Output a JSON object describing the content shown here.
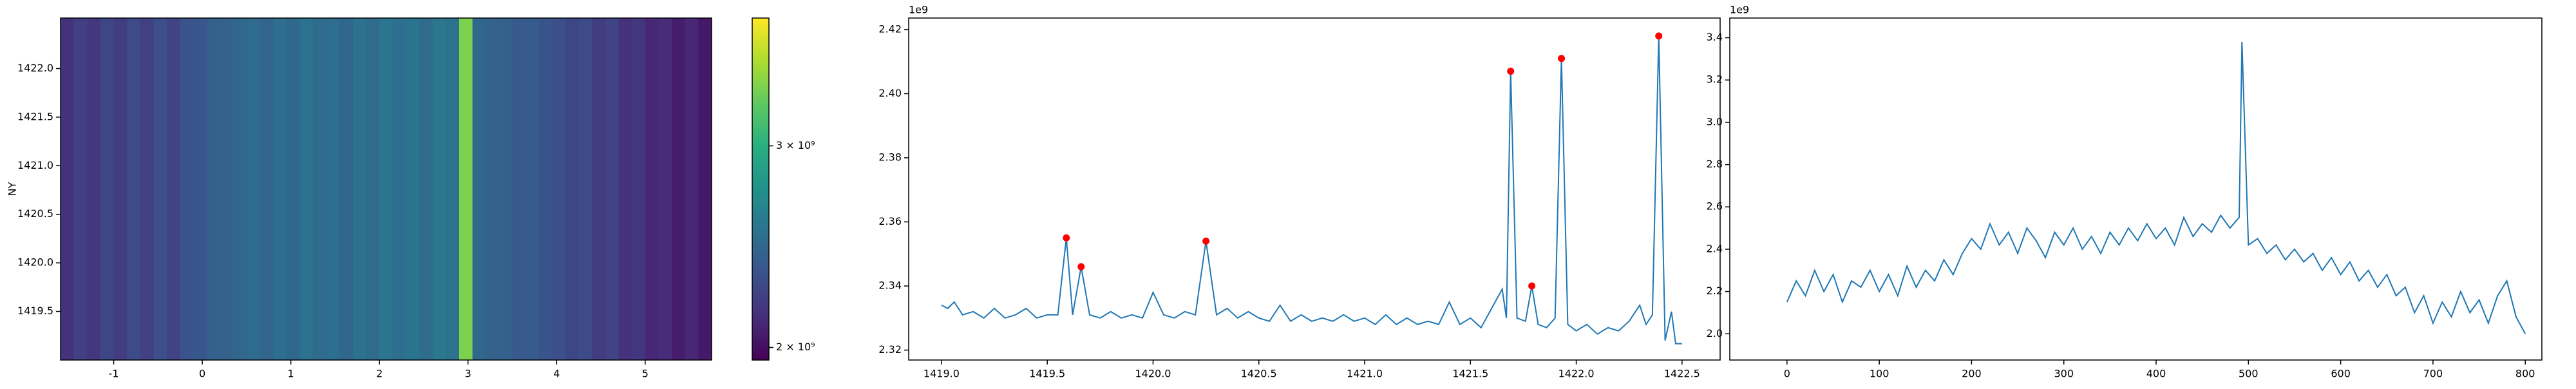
{
  "chart_data": [
    {
      "type": "heatmap",
      "ylabel": "NY",
      "colormap": "viridis",
      "cscale": "log",
      "xbins": [
        -1.6,
        -1.45,
        -1.3,
        -1.15,
        -1.0,
        -0.85,
        -0.7,
        -0.55,
        -0.4,
        -0.25,
        -0.1,
        0.05,
        0.2,
        0.35,
        0.5,
        0.65,
        0.8,
        0.95,
        1.1,
        1.25,
        1.4,
        1.55,
        1.7,
        1.85,
        2.0,
        2.15,
        2.3,
        2.45,
        2.6,
        2.75,
        2.9,
        3.05,
        3.2,
        3.35,
        3.5,
        3.65,
        3.8,
        3.95,
        4.1,
        4.25,
        4.4,
        4.55,
        4.7,
        4.85,
        5.0,
        5.15,
        5.3,
        5.45,
        5.6,
        5.75
      ],
      "values": [
        2150000000.0,
        2220000000.0,
        2180000000.0,
        2250000000.0,
        2200000000.0,
        2280000000.0,
        2220000000.0,
        2300000000.0,
        2240000000.0,
        2320000000.0,
        2350000000.0,
        2400000000.0,
        2420000000.0,
        2450000000.0,
        2480000000.0,
        2440000000.0,
        2500000000.0,
        2460000000.0,
        2520000000.0,
        2480000000.0,
        2500000000.0,
        2450000000.0,
        2520000000.0,
        2480000000.0,
        2550000000.0,
        2500000000.0,
        2540000000.0,
        2480000000.0,
        2560000000.0,
        2520000000.0,
        3380000000.0,
        2450000000.0,
        2420000000.0,
        2400000000.0,
        2360000000.0,
        2380000000.0,
        2320000000.0,
        2300000000.0,
        2260000000.0,
        2280000000.0,
        2200000000.0,
        2240000000.0,
        2150000000.0,
        2180000000.0,
        2100000000.0,
        2120000000.0,
        2060000000.0,
        2100000000.0,
        2040000000.0
      ],
      "xlim": [
        -1.6,
        5.75
      ],
      "ylim": [
        1419.0,
        1422.52
      ],
      "xticks": [
        -1,
        0,
        1,
        2,
        3,
        4,
        5
      ],
      "yticks": [
        1419.5,
        {
          "value": 1420.0,
          "label": "1420.0"
        },
        1420.5,
        {
          "value": 1421.0,
          "label": "1421.0"
        },
        1421.5,
        {
          "value": 1422.0,
          "label": "1422.0"
        }
      ],
      "clim": [
        1950000000.0,
        3880000000.0
      ],
      "cticks": [
        {
          "value": 2000000000.0,
          "label": "2 × 10⁹"
        },
        {
          "value": 3000000000.0,
          "label": "3 × 10⁹"
        }
      ]
    },
    {
      "type": "line",
      "color": "#1f77b4",
      "y_offset_label": "1e9",
      "x": [
        1419.0,
        1419.03,
        1419.06,
        1419.1,
        1419.15,
        1419.2,
        1419.25,
        1419.3,
        1419.35,
        1419.4,
        1419.45,
        1419.5,
        1419.55,
        1419.59,
        1419.62,
        1419.66,
        1419.7,
        1419.75,
        1419.8,
        1419.85,
        1419.9,
        1419.95,
        1420.0,
        1420.05,
        1420.1,
        1420.15,
        1420.2,
        1420.25,
        1420.3,
        1420.35,
        1420.4,
        1420.45,
        1420.5,
        1420.55,
        1420.6,
        1420.65,
        1420.7,
        1420.75,
        1420.8,
        1420.85,
        1420.9,
        1420.95,
        1421.0,
        1421.05,
        1421.1,
        1421.15,
        1421.2,
        1421.25,
        1421.3,
        1421.35,
        1421.4,
        1421.45,
        1421.5,
        1421.55,
        1421.6,
        1421.65,
        1421.67,
        1421.69,
        1421.72,
        1421.76,
        1421.79,
        1421.82,
        1421.86,
        1421.9,
        1421.93,
        1421.96,
        1422.0,
        1422.05,
        1422.1,
        1422.15,
        1422.2,
        1422.25,
        1422.3,
        1422.33,
        1422.36,
        1422.39,
        1422.42,
        1422.45,
        1422.47,
        1422.5
      ],
      "values": [
        2.334,
        2.333,
        2.335,
        2.331,
        2.332,
        2.33,
        2.333,
        2.33,
        2.331,
        2.333,
        2.33,
        2.331,
        2.331,
        2.355,
        2.331,
        2.346,
        2.331,
        2.33,
        2.332,
        2.33,
        2.331,
        2.33,
        2.338,
        2.331,
        2.33,
        2.332,
        2.331,
        2.354,
        2.331,
        2.333,
        2.33,
        2.332,
        2.33,
        2.329,
        2.334,
        2.329,
        2.331,
        2.329,
        2.33,
        2.329,
        2.331,
        2.329,
        2.33,
        2.328,
        2.331,
        2.328,
        2.33,
        2.328,
        2.329,
        2.328,
        2.335,
        2.328,
        2.33,
        2.327,
        2.333,
        2.339,
        2.33,
        2.407,
        2.33,
        2.329,
        2.34,
        2.328,
        2.327,
        2.33,
        2.411,
        2.328,
        2.326,
        2.328,
        2.325,
        2.327,
        2.326,
        2.329,
        2.334,
        2.328,
        2.331,
        2.418,
        2.323,
        2.332,
        2.322,
        2.322
      ],
      "peaks": {
        "color": "#ff0000",
        "x": [
          1419.59,
          1419.66,
          1420.25,
          1421.69,
          1421.79,
          1421.93,
          1422.39
        ],
        "values": [
          2.355,
          2.346,
          2.354,
          2.407,
          2.34,
          2.411,
          2.418
        ]
      },
      "xlim": [
        1418.845,
        1422.68
      ],
      "ylim": [
        2.3169,
        2.4236
      ],
      "xticks": [
        {
          "value": 1419.0,
          "label": "1419.0"
        },
        1419.5,
        {
          "value": 1420.0,
          "label": "1420.0"
        },
        1420.5,
        {
          "value": 1421.0,
          "label": "1421.0"
        },
        1421.5,
        {
          "value": 1422.0,
          "label": "1422.0"
        },
        1422.5
      ],
      "yticks": [
        2.32,
        2.34,
        2.36,
        2.38,
        {
          "value": 2.4,
          "label": "2.40"
        },
        2.42
      ]
    },
    {
      "type": "line",
      "color": "#1f77b4",
      "y_offset_label": "1e9",
      "x": [
        0,
        10,
        20,
        30,
        40,
        50,
        60,
        70,
        80,
        90,
        100,
        110,
        120,
        130,
        140,
        150,
        160,
        170,
        180,
        190,
        200,
        210,
        220,
        230,
        240,
        250,
        260,
        270,
        280,
        290,
        300,
        310,
        320,
        330,
        340,
        350,
        360,
        370,
        380,
        390,
        400,
        410,
        420,
        430,
        440,
        450,
        460,
        470,
        480,
        490,
        493,
        500,
        510,
        520,
        530,
        540,
        550,
        560,
        570,
        580,
        590,
        600,
        610,
        620,
        630,
        640,
        650,
        660,
        670,
        680,
        690,
        700,
        710,
        720,
        730,
        740,
        750,
        760,
        770,
        780,
        790,
        800
      ],
      "values": [
        2.15,
        2.25,
        2.18,
        2.3,
        2.2,
        2.28,
        2.15,
        2.25,
        2.22,
        2.3,
        2.2,
        2.28,
        2.18,
        2.32,
        2.22,
        2.3,
        2.25,
        2.35,
        2.28,
        2.38,
        2.45,
        2.4,
        2.52,
        2.42,
        2.48,
        2.38,
        2.5,
        2.44,
        2.36,
        2.48,
        2.42,
        2.5,
        2.4,
        2.46,
        2.38,
        2.48,
        2.42,
        2.5,
        2.44,
        2.52,
        2.45,
        2.5,
        2.42,
        2.55,
        2.46,
        2.52,
        2.48,
        2.56,
        2.5,
        2.55,
        3.38,
        2.42,
        2.45,
        2.38,
        2.42,
        2.35,
        2.4,
        2.34,
        2.38,
        2.3,
        2.36,
        2.28,
        2.34,
        2.25,
        2.3,
        2.22,
        2.28,
        2.18,
        2.22,
        2.1,
        2.18,
        2.05,
        2.15,
        2.08,
        2.2,
        2.1,
        2.16,
        2.05,
        2.18,
        2.25,
        2.08,
        2.0
      ],
      "xlim": [
        -62,
        818
      ],
      "ylim": [
        1.876,
        3.493
      ],
      "xticks": [
        0,
        100,
        200,
        300,
        400,
        500,
        600,
        700,
        800
      ],
      "yticks": [
        {
          "value": 2.0,
          "label": "2.0"
        },
        2.2,
        2.4,
        2.6,
        2.8,
        {
          "value": 3.0,
          "label": "3.0"
        },
        3.2,
        3.4
      ]
    }
  ]
}
